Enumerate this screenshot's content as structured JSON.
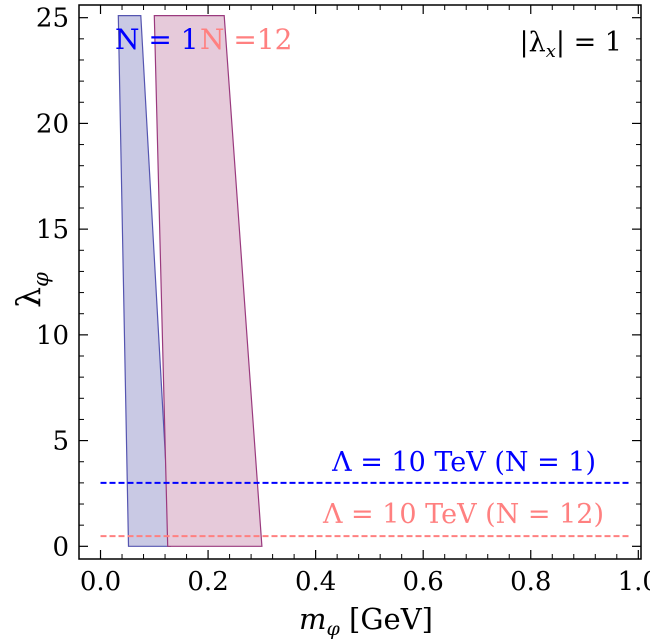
{
  "chart_data": {
    "type": "area",
    "title": "",
    "xlabel": "m_φ [GeV]",
    "ylabel": "λ_φ",
    "xlim": [
      -0.04,
      1.005
    ],
    "ylim": [
      -0.6,
      25.6
    ],
    "x_ticks": [
      0.0,
      0.2,
      0.4,
      0.6,
      0.8,
      1.0
    ],
    "x_tick_labels": [
      "0.0",
      "0.2",
      "0.4",
      "0.6",
      "0.8",
      "1.0"
    ],
    "y_ticks": [
      0,
      5,
      10,
      15,
      20,
      25
    ],
    "y_tick_labels": [
      "0",
      "5",
      "10",
      "15",
      "20",
      "25"
    ],
    "grid": false,
    "series": [
      {
        "name": "N = 1",
        "color": "#0000ff",
        "fill": "#c9c9e4",
        "stroke": "#5555b0",
        "polygon": [
          [
            0.033,
            25.1
          ],
          [
            0.075,
            25.1
          ],
          [
            0.13,
            0
          ],
          [
            0.052,
            0
          ]
        ]
      },
      {
        "name": "N =12",
        "color": "#ff8080",
        "fill": "#e6cada",
        "stroke": "#9a3a7e",
        "polygon": [
          [
            0.1,
            25.1
          ],
          [
            0.23,
            25.1
          ],
          [
            0.3,
            0
          ],
          [
            0.125,
            0
          ]
        ]
      }
    ],
    "reference_lines": [
      {
        "label": "Λ = 10 TeV (N = 1)",
        "y": 3.0,
        "color": "#0000ff",
        "style": "dashed"
      },
      {
        "label": "Λ = 10 TeV (N = 12)",
        "y": 0.48,
        "color": "#ff8080",
        "style": "dashed"
      }
    ],
    "annotations": {
      "lambda_x": "|λ_x| = 1",
      "n1": "N = 1",
      "n12": "N =12"
    }
  }
}
